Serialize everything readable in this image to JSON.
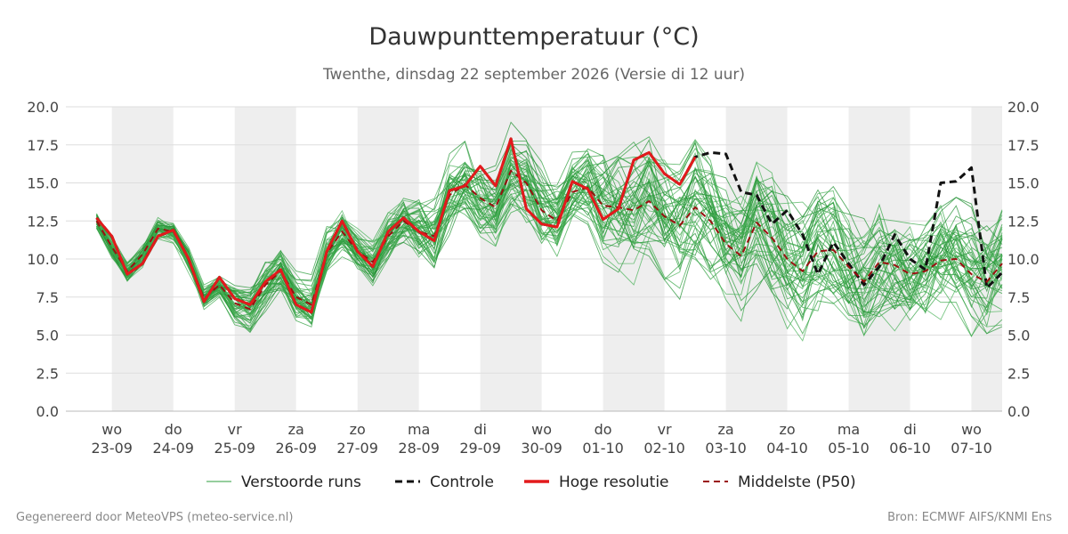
{
  "chart_data": {
    "type": "line",
    "title": "Dauwpunttemperatuur (°C)",
    "subtitle": "Twenthe, dinsdag 22 september 2026 (Versie di 12 uur)",
    "ylim": [
      0,
      20
    ],
    "yticks": [
      "0.0",
      "2.5",
      "5.0",
      "7.5",
      "10.0",
      "12.5",
      "15.0",
      "17.5",
      "20.0"
    ],
    "grid": true,
    "x_range_days": [
      -0.75,
      14.5
    ],
    "day_ticks": [
      {
        "day": 0,
        "weekday": "wo",
        "date": "23-09",
        "shaded": true
      },
      {
        "day": 1,
        "weekday": "do",
        "date": "24-09",
        "shaded": false
      },
      {
        "day": 2,
        "weekday": "vr",
        "date": "25-09",
        "shaded": true
      },
      {
        "day": 3,
        "weekday": "za",
        "date": "26-09",
        "shaded": false
      },
      {
        "day": 4,
        "weekday": "zo",
        "date": "27-09",
        "shaded": true
      },
      {
        "day": 5,
        "weekday": "ma",
        "date": "28-09",
        "shaded": false
      },
      {
        "day": 6,
        "weekday": "di",
        "date": "29-09",
        "shaded": true
      },
      {
        "day": 7,
        "weekday": "wo",
        "date": "30-09",
        "shaded": false
      },
      {
        "day": 8,
        "weekday": "do",
        "date": "01-10",
        "shaded": true
      },
      {
        "day": 9,
        "weekday": "vr",
        "date": "02-10",
        "shaded": false
      },
      {
        "day": 10,
        "weekday": "za",
        "date": "03-10",
        "shaded": true
      },
      {
        "day": 11,
        "weekday": "zo",
        "date": "04-10",
        "shaded": false
      },
      {
        "day": 12,
        "weekday": "ma",
        "date": "05-10",
        "shaded": true
      },
      {
        "day": 13,
        "weekday": "di",
        "date": "06-10",
        "shaded": false
      },
      {
        "day": 14,
        "weekday": "wo",
        "date": "07-10",
        "shaded": true
      }
    ],
    "legend": {
      "placement": "bottom",
      "entries": [
        {
          "name": "Verstoorde runs",
          "style": "thin-solid",
          "color": "#2e9e3e"
        },
        {
          "name": "Controle",
          "style": "dashed",
          "color": "#111111"
        },
        {
          "name": "Hoge resolutie",
          "style": "thick-solid",
          "color": "#e31a1c"
        },
        {
          "name": "Middelste (P50)",
          "style": "dashed",
          "color": "#9a1010"
        }
      ]
    },
    "series": [
      {
        "name": "Hoge resolutie",
        "color": "#e31a1c",
        "x": [
          -0.25,
          0,
          0.25,
          0.5,
          0.75,
          1,
          1.25,
          1.5,
          1.75,
          2,
          2.25,
          2.5,
          2.75,
          3,
          3.25,
          3.5,
          3.75,
          4,
          4.25,
          4.5,
          4.75,
          5,
          5.25,
          5.5,
          5.75,
          6,
          6.25,
          6.5,
          6.75,
          7,
          7.25,
          7.5,
          7.75,
          8,
          8.25,
          8.5,
          8.75,
          9,
          9.25,
          9.5
        ],
        "y": [
          12.7,
          11.5,
          9.0,
          9.7,
          11.5,
          11.9,
          10.0,
          7.2,
          8.8,
          7.4,
          7.0,
          8.5,
          9.3,
          7.0,
          6.5,
          10.5,
          12.5,
          10.5,
          9.5,
          11.8,
          12.7,
          11.8,
          11.2,
          14.5,
          14.8,
          16.1,
          14.8,
          17.9,
          13.3,
          12.3,
          12.1,
          15.1,
          14.6,
          12.6,
          13.3,
          16.5,
          17.0,
          15.6,
          14.9,
          16.7
        ]
      },
      {
        "name": "Controle",
        "color": "#111111",
        "x": [
          -0.25,
          0,
          0.25,
          0.5,
          0.75,
          1,
          1.25,
          1.5,
          1.75,
          2,
          2.25,
          2.5,
          2.75,
          3,
          3.25,
          3.5,
          3.75,
          4,
          4.25,
          4.5,
          4.75,
          5,
          5.25,
          5.5,
          5.75,
          6,
          6.25,
          6.5,
          6.75,
          7,
          7.25,
          7.5,
          7.75,
          8,
          8.25,
          8.5,
          8.75,
          9,
          9.25,
          9.5,
          9.75,
          10,
          10.25,
          10.5,
          10.75,
          11,
          11.25,
          11.5,
          11.75,
          12,
          12.25,
          12.5,
          12.75,
          13,
          13.25,
          13.5,
          13.75,
          14,
          14.25,
          14.5
        ],
        "y": [
          12.7,
          11.5,
          9.0,
          9.7,
          11.5,
          11.9,
          10.0,
          7.2,
          8.8,
          7.4,
          7.0,
          8.5,
          9.3,
          7.0,
          6.5,
          10.5,
          12.5,
          10.5,
          9.5,
          11.8,
          12.7,
          11.8,
          11.2,
          14.5,
          14.8,
          16.1,
          14.8,
          17.9,
          13.3,
          12.3,
          12.1,
          15.1,
          14.6,
          12.6,
          13.3,
          16.5,
          17.0,
          15.6,
          14.9,
          16.7,
          17.0,
          16.9,
          14.4,
          14.2,
          12.3,
          13.2,
          11.6,
          9.0,
          11.1,
          9.7,
          8.3,
          9.5,
          11.6,
          10.0,
          9.3,
          15.0,
          15.1,
          16.0,
          8.1,
          9.1
        ]
      },
      {
        "name": "Middelste (P50)",
        "color": "#9a1010",
        "x": [
          -0.25,
          0,
          0.25,
          0.5,
          0.75,
          1,
          1.25,
          1.5,
          1.75,
          2,
          2.25,
          2.5,
          2.75,
          3,
          3.25,
          3.5,
          3.75,
          4,
          4.25,
          4.5,
          4.75,
          5,
          5.25,
          5.5,
          5.75,
          6,
          6.25,
          6.5,
          6.75,
          7,
          7.25,
          7.5,
          7.75,
          8,
          8.25,
          8.5,
          8.75,
          9,
          9.25,
          9.5,
          9.75,
          10,
          10.25,
          10.5,
          10.75,
          11,
          11.25,
          11.5,
          11.75,
          12,
          12.25,
          12.5,
          12.75,
          13,
          13.25,
          13.5,
          13.75,
          14,
          14.25,
          14.5
        ],
        "y": [
          12.5,
          10.8,
          9.2,
          10.3,
          12.0,
          11.8,
          10.0,
          7.4,
          8.3,
          7.1,
          6.7,
          8.3,
          9.2,
          7.5,
          7.0,
          10.4,
          11.8,
          10.5,
          9.8,
          11.5,
          12.5,
          11.8,
          11.5,
          14.2,
          14.9,
          14.0,
          13.4,
          15.8,
          15.0,
          13.2,
          12.5,
          14.4,
          14.7,
          13.5,
          13.4,
          13.2,
          13.8,
          12.8,
          12.2,
          13.4,
          12.5,
          11.0,
          10.2,
          12.4,
          11.4,
          10.0,
          9.2,
          10.5,
          10.6,
          9.5,
          8.5,
          9.8,
          9.6,
          9.0,
          9.2,
          9.9,
          10.0,
          9.0,
          8.5,
          9.7
        ]
      }
    ]
  },
  "footer": {
    "left": "Gegenereerd door MeteoVPS (meteo-service.nl)",
    "right": "Bron: ECMWF AIFS/KNMI Ens"
  }
}
